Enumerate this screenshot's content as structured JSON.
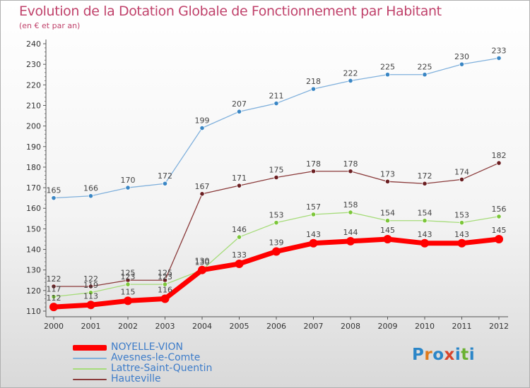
{
  "header": {
    "title": "Evolution de la Dotation Globale de Fonctionnement par Habitant",
    "subtitle": "(en € et par an)"
  },
  "logo": {
    "text": "Proxiti",
    "letter_colors": [
      "#2b86c8",
      "#e07b1c",
      "#2b86c8",
      "#d9442b",
      "#2b86c8",
      "#6ab132",
      "#2b86c8"
    ]
  },
  "chart_data": {
    "type": "line",
    "title": "Evolution de la Dotation Globale de Fonctionnement par Habitant",
    "subtitle": "(en € et par an)",
    "xlabel": "",
    "ylabel": "",
    "x": [
      "2000",
      "2001",
      "2002",
      "2003",
      "2004",
      "2005",
      "2006",
      "2007",
      "2008",
      "2009",
      "2010",
      "2011",
      "2012"
    ],
    "ylim": [
      110,
      240
    ],
    "yticks": [
      110,
      120,
      130,
      140,
      150,
      160,
      170,
      180,
      190,
      200,
      210,
      220,
      230,
      240
    ],
    "grid": false,
    "legend_position": "bottom-left",
    "series": [
      {
        "name": "Avesnes-le-Comte",
        "color": "#7fb0dc",
        "marker_color": "#3a86c4",
        "values": [
          165,
          166,
          170,
          172,
          199,
          207,
          211,
          218,
          222,
          225,
          225,
          230,
          233
        ]
      },
      {
        "name": "Hauteville",
        "color": "#8a3a3a",
        "marker_color": "#6b1f22",
        "values": [
          122,
          122,
          125,
          125,
          167,
          171,
          175,
          178,
          178,
          173,
          172,
          174,
          182
        ]
      },
      {
        "name": "Lattre-Saint-Quentin",
        "color": "#a6dc7a",
        "marker_color": "#7cc63a",
        "values": [
          117,
          119,
          123,
          123,
          130,
          146,
          153,
          157,
          158,
          154,
          154,
          153,
          156
        ]
      },
      {
        "name": "NOYELLE-VION",
        "color": "#ff0000",
        "marker_color": "#ff0000",
        "bold": true,
        "values": [
          112,
          113,
          115,
          116,
          130,
          133,
          139,
          143,
          144,
          145,
          143,
          143,
          145
        ]
      }
    ],
    "legend_order": [
      "NOYELLE-VION",
      "Avesnes-le-Comte",
      "Lattre-Saint-Quentin",
      "Hauteville"
    ]
  }
}
